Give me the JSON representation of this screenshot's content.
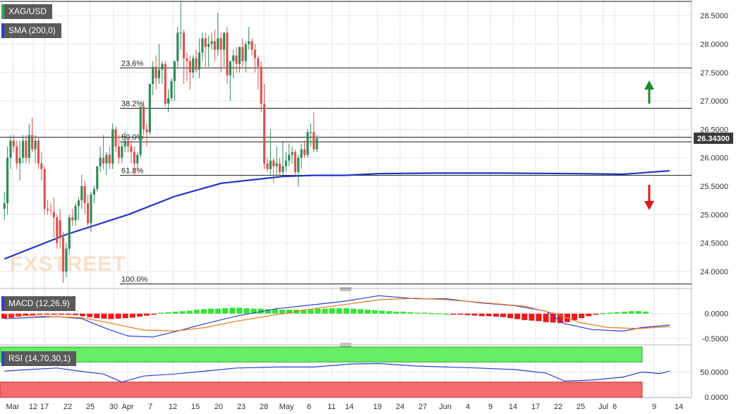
{
  "chart_data": {
    "type": "candlestick",
    "title": "XAG/USD",
    "symbol": "XAG/USD",
    "last_price": 26.343,
    "last_price_label": "26.34300",
    "watermark": "FXSTREET",
    "indicators": {
      "sma_label": "SMA (200,0)",
      "macd_label": "MACD (12,26,9)",
      "rsi_label": "RSI (14,70,30,1)"
    },
    "price_axis": {
      "ylim": [
        23.75,
        28.75
      ],
      "ticks": [
        24.0,
        24.5,
        25.0,
        25.5,
        26.0,
        26.5,
        27.0,
        27.5,
        28.0,
        28.5
      ],
      "tick_labels": [
        "24.0000",
        "24.5000",
        "25.0000",
        "25.5000",
        "26.0000",
        "26.5000",
        "27.0000",
        "27.5000",
        "28.0000",
        "28.5000"
      ]
    },
    "macd_axis": {
      "ylim": [
        -0.6,
        0.45
      ],
      "ticks": [
        0,
        -0.5
      ],
      "tick_labels": [
        "0.0000",
        "-0.5000"
      ]
    },
    "rsi_axis": {
      "ylim": [
        0,
        100
      ],
      "ticks": [
        50,
        0
      ],
      "tick_labels": [
        "50.0000",
        "0.0000"
      ],
      "overbought": 70,
      "oversold": 30
    },
    "x_axis_labels": [
      "Mar",
      "12",
      "17",
      "22",
      "25",
      "30",
      "Apr",
      "7",
      "12",
      "15",
      "20",
      "23",
      "28",
      "May",
      "6",
      "11",
      "14",
      "19",
      "24",
      "27",
      "Jun",
      "4",
      "9",
      "14",
      "17",
      "22",
      "25",
      "Jul",
      "6",
      "9",
      "14"
    ],
    "fibonacci": [
      {
        "label": "23.6%",
        "price": 27.58
      },
      {
        "label": "38.2%",
        "price": 26.87
      },
      {
        "label": "50.0%",
        "price": 26.28
      },
      {
        "label": "61.8%",
        "price": 25.69
      },
      {
        "label": "100.0%",
        "price": 23.78
      }
    ],
    "level_lines": [
      28.75,
      26.36
    ],
    "candles": [
      {
        "o": 25.1,
        "h": 25.4,
        "l": 24.9,
        "c": 25.2
      },
      {
        "o": 25.2,
        "h": 26.2,
        "l": 25.0,
        "c": 26.0
      },
      {
        "o": 26.0,
        "h": 26.4,
        "l": 25.8,
        "c": 26.3
      },
      {
        "o": 26.3,
        "h": 26.4,
        "l": 26.1,
        "c": 26.2
      },
      {
        "o": 26.2,
        "h": 26.3,
        "l": 25.8,
        "c": 25.9
      },
      {
        "o": 25.9,
        "h": 26.3,
        "l": 25.6,
        "c": 26.0
      },
      {
        "o": 26.0,
        "h": 26.4,
        "l": 25.9,
        "c": 26.3
      },
      {
        "o": 26.3,
        "h": 26.4,
        "l": 25.9,
        "c": 26.0
      },
      {
        "o": 26.0,
        "h": 26.6,
        "l": 25.9,
        "c": 26.4
      },
      {
        "o": 26.4,
        "h": 26.7,
        "l": 26.1,
        "c": 26.15
      },
      {
        "o": 26.15,
        "h": 26.4,
        "l": 25.9,
        "c": 26.3
      },
      {
        "o": 26.3,
        "h": 26.35,
        "l": 25.8,
        "c": 25.9
      },
      {
        "o": 25.9,
        "h": 26.1,
        "l": 25.6,
        "c": 25.8
      },
      {
        "o": 25.8,
        "h": 25.85,
        "l": 25.0,
        "c": 25.1
      },
      {
        "o": 25.1,
        "h": 25.25,
        "l": 25.0,
        "c": 25.08
      },
      {
        "o": 25.08,
        "h": 25.2,
        "l": 25.0,
        "c": 25.07
      },
      {
        "o": 25.05,
        "h": 25.3,
        "l": 24.6,
        "c": 24.95
      },
      {
        "o": 24.95,
        "h": 25.0,
        "l": 24.4,
        "c": 24.5
      },
      {
        "o": 24.9,
        "h": 25.1,
        "l": 24.4,
        "c": 24.6
      },
      {
        "o": 24.6,
        "h": 24.7,
        "l": 23.8,
        "c": 24.0
      },
      {
        "o": 24.0,
        "h": 24.5,
        "l": 23.9,
        "c": 24.4
      },
      {
        "o": 24.4,
        "h": 25.0,
        "l": 24.3,
        "c": 24.95
      },
      {
        "o": 24.95,
        "h": 25.1,
        "l": 24.8,
        "c": 24.9
      },
      {
        "o": 24.9,
        "h": 25.2,
        "l": 24.8,
        "c": 25.15
      },
      {
        "o": 25.15,
        "h": 25.3,
        "l": 24.9,
        "c": 25.25
      },
      {
        "o": 25.25,
        "h": 25.7,
        "l": 25.1,
        "c": 25.5
      },
      {
        "o": 25.5,
        "h": 25.6,
        "l": 25.0,
        "c": 25.2
      },
      {
        "o": 25.2,
        "h": 25.35,
        "l": 24.8,
        "c": 24.85
      },
      {
        "o": 24.85,
        "h": 25.4,
        "l": 24.7,
        "c": 25.35
      },
      {
        "o": 25.35,
        "h": 25.5,
        "l": 25.2,
        "c": 25.45
      },
      {
        "o": 25.45,
        "h": 25.85,
        "l": 25.4,
        "c": 25.85
      },
      {
        "o": 25.85,
        "h": 26.2,
        "l": 25.75,
        "c": 26.0
      },
      {
        "o": 26.0,
        "h": 26.4,
        "l": 25.8,
        "c": 25.9
      },
      {
        "o": 25.9,
        "h": 26.1,
        "l": 25.7,
        "c": 26.05
      },
      {
        "o": 26.05,
        "h": 26.2,
        "l": 25.8,
        "c": 25.9
      },
      {
        "o": 25.9,
        "h": 26.6,
        "l": 25.8,
        "c": 26.5
      },
      {
        "o": 26.5,
        "h": 26.55,
        "l": 26.1,
        "c": 26.2
      },
      {
        "o": 26.2,
        "h": 26.4,
        "l": 25.9,
        "c": 26.0
      },
      {
        "o": 26.0,
        "h": 26.3,
        "l": 25.9,
        "c": 26.2
      },
      {
        "o": 26.2,
        "h": 26.45,
        "l": 26.1,
        "c": 26.3
      },
      {
        "o": 26.3,
        "h": 26.35,
        "l": 26.1,
        "c": 26.2
      },
      {
        "o": 26.2,
        "h": 26.3,
        "l": 25.9,
        "c": 26.1
      },
      {
        "o": 26.1,
        "h": 26.2,
        "l": 25.7,
        "c": 25.9
      },
      {
        "o": 25.9,
        "h": 26.1,
        "l": 25.8,
        "c": 26.05
      },
      {
        "o": 26.05,
        "h": 26.9,
        "l": 26.0,
        "c": 26.9
      },
      {
        "o": 26.9,
        "h": 27.0,
        "l": 26.4,
        "c": 26.5
      },
      {
        "o": 26.5,
        "h": 26.6,
        "l": 26.2,
        "c": 26.45
      },
      {
        "o": 26.45,
        "h": 27.3,
        "l": 26.4,
        "c": 27.3
      },
      {
        "o": 27.3,
        "h": 27.7,
        "l": 27.1,
        "c": 27.6
      },
      {
        "o": 27.6,
        "h": 27.8,
        "l": 27.2,
        "c": 27.4
      },
      {
        "o": 27.4,
        "h": 28.0,
        "l": 27.3,
        "c": 27.55
      },
      {
        "o": 27.55,
        "h": 27.7,
        "l": 27.3,
        "c": 27.65
      },
      {
        "o": 27.65,
        "h": 27.7,
        "l": 26.9,
        "c": 26.95
      },
      {
        "o": 26.95,
        "h": 27.2,
        "l": 26.8,
        "c": 27.05
      },
      {
        "o": 27.05,
        "h": 27.4,
        "l": 27.0,
        "c": 27.35
      },
      {
        "o": 27.35,
        "h": 27.7,
        "l": 27.0,
        "c": 27.7
      },
      {
        "o": 27.7,
        "h": 28.3,
        "l": 27.6,
        "c": 28.2
      },
      {
        "o": 28.2,
        "h": 28.75,
        "l": 27.9,
        "c": 28.2
      },
      {
        "o": 28.2,
        "h": 28.25,
        "l": 27.3,
        "c": 27.75
      },
      {
        "o": 27.75,
        "h": 27.85,
        "l": 27.35,
        "c": 27.7
      },
      {
        "o": 27.7,
        "h": 27.8,
        "l": 27.2,
        "c": 27.5
      },
      {
        "o": 27.5,
        "h": 27.8,
        "l": 27.4,
        "c": 27.75
      },
      {
        "o": 27.75,
        "h": 27.9,
        "l": 27.5,
        "c": 27.55
      },
      {
        "o": 27.55,
        "h": 28.1,
        "l": 27.4,
        "c": 27.85
      },
      {
        "o": 27.85,
        "h": 28.2,
        "l": 27.7,
        "c": 28.1
      },
      {
        "o": 28.1,
        "h": 28.2,
        "l": 27.6,
        "c": 27.95
      },
      {
        "o": 27.95,
        "h": 28.15,
        "l": 27.6,
        "c": 28.0
      },
      {
        "o": 28.0,
        "h": 28.2,
        "l": 27.9,
        "c": 28.05
      },
      {
        "o": 28.05,
        "h": 28.25,
        "l": 27.7,
        "c": 27.9
      },
      {
        "o": 27.9,
        "h": 28.55,
        "l": 27.8,
        "c": 28.1
      },
      {
        "o": 28.1,
        "h": 28.2,
        "l": 27.5,
        "c": 27.9
      },
      {
        "o": 27.9,
        "h": 28.2,
        "l": 27.6,
        "c": 28.2
      },
      {
        "o": 28.2,
        "h": 28.3,
        "l": 27.3,
        "c": 27.45
      },
      {
        "o": 27.45,
        "h": 27.7,
        "l": 27.0,
        "c": 27.7
      },
      {
        "o": 27.7,
        "h": 27.9,
        "l": 27.4,
        "c": 27.8
      },
      {
        "o": 27.8,
        "h": 27.95,
        "l": 27.5,
        "c": 27.65
      },
      {
        "o": 27.65,
        "h": 27.95,
        "l": 27.5,
        "c": 27.95
      },
      {
        "o": 27.95,
        "h": 28.1,
        "l": 27.6,
        "c": 27.7
      },
      {
        "o": 27.7,
        "h": 28.05,
        "l": 27.5,
        "c": 28.0
      },
      {
        "o": 28.0,
        "h": 28.3,
        "l": 27.9,
        "c": 28.05
      },
      {
        "o": 28.05,
        "h": 28.1,
        "l": 27.8,
        "c": 27.9
      },
      {
        "o": 27.9,
        "h": 28.0,
        "l": 27.5,
        "c": 27.75
      },
      {
        "o": 27.75,
        "h": 27.8,
        "l": 27.2,
        "c": 27.6
      },
      {
        "o": 27.6,
        "h": 27.7,
        "l": 26.8,
        "c": 26.95
      },
      {
        "o": 26.95,
        "h": 27.3,
        "l": 25.8,
        "c": 25.9
      },
      {
        "o": 25.9,
        "h": 26.0,
        "l": 25.75,
        "c": 25.8
      },
      {
        "o": 25.8,
        "h": 26.5,
        "l": 25.7,
        "c": 25.95
      },
      {
        "o": 25.95,
        "h": 26.0,
        "l": 25.55,
        "c": 25.85
      },
      {
        "o": 25.85,
        "h": 26.2,
        "l": 25.7,
        "c": 25.9
      },
      {
        "o": 25.9,
        "h": 26.0,
        "l": 25.65,
        "c": 25.75
      },
      {
        "o": 25.75,
        "h": 26.3,
        "l": 25.7,
        "c": 25.85
      },
      {
        "o": 25.85,
        "h": 26.1,
        "l": 25.75,
        "c": 25.95
      },
      {
        "o": 25.95,
        "h": 26.25,
        "l": 25.85,
        "c": 26.05
      },
      {
        "o": 26.05,
        "h": 26.2,
        "l": 25.9,
        "c": 26.1
      },
      {
        "o": 26.1,
        "h": 26.15,
        "l": 25.7,
        "c": 25.75
      },
      {
        "o": 25.75,
        "h": 26.05,
        "l": 25.5,
        "c": 26.0
      },
      {
        "o": 26.0,
        "h": 26.25,
        "l": 25.8,
        "c": 26.15
      },
      {
        "o": 26.15,
        "h": 26.3,
        "l": 26.0,
        "c": 26.05
      },
      {
        "o": 26.05,
        "h": 26.5,
        "l": 26.0,
        "c": 26.45
      },
      {
        "o": 26.45,
        "h": 26.6,
        "l": 26.2,
        "c": 26.45
      },
      {
        "o": 26.45,
        "h": 26.8,
        "l": 26.1,
        "c": 26.15
      },
      {
        "o": 26.15,
        "h": 26.4,
        "l": 26.1,
        "c": 26.34
      }
    ],
    "sma_200": [
      [
        0,
        24.22
      ],
      [
        20,
        24.65
      ],
      [
        40,
        25.0
      ],
      [
        55,
        25.32
      ],
      [
        70,
        25.55
      ],
      [
        90,
        25.67
      ],
      [
        100,
        25.69
      ],
      [
        110,
        25.69
      ],
      [
        121,
        25.72
      ],
      [
        140,
        25.73
      ],
      [
        160,
        25.73
      ],
      [
        185,
        25.72
      ],
      [
        200,
        25.71
      ],
      [
        215,
        25.77
      ]
    ],
    "macd_line": [
      [
        0,
        -0.1
      ],
      [
        8,
        -0.08
      ],
      [
        17,
        -0.06
      ],
      [
        25,
        -0.1
      ],
      [
        33,
        -0.3
      ],
      [
        40,
        -0.45
      ],
      [
        48,
        -0.47
      ],
      [
        56,
        -0.35
      ],
      [
        65,
        -0.2
      ],
      [
        75,
        -0.05
      ],
      [
        88,
        0.1
      ],
      [
        100,
        0.18
      ],
      [
        110,
        0.25
      ],
      [
        121,
        0.36
      ],
      [
        133,
        0.3
      ],
      [
        143,
        0.3
      ],
      [
        153,
        0.22
      ],
      [
        165,
        0.16
      ],
      [
        175,
        0.05
      ],
      [
        181,
        -0.2
      ],
      [
        190,
        -0.32
      ],
      [
        200,
        -0.35
      ],
      [
        206,
        -0.28
      ],
      [
        215,
        -0.23
      ]
    ],
    "macd_signal": [
      [
        0,
        -0.02
      ],
      [
        10,
        -0.05
      ],
      [
        25,
        -0.08
      ],
      [
        35,
        -0.2
      ],
      [
        45,
        -0.33
      ],
      [
        55,
        -0.35
      ],
      [
        65,
        -0.28
      ],
      [
        75,
        -0.15
      ],
      [
        88,
        -0.02
      ],
      [
        100,
        0.1
      ],
      [
        112,
        0.2
      ],
      [
        121,
        0.28
      ],
      [
        133,
        0.31
      ],
      [
        143,
        0.28
      ],
      [
        155,
        0.22
      ],
      [
        168,
        0.15
      ],
      [
        178,
        0.0
      ],
      [
        186,
        -0.18
      ],
      [
        195,
        -0.28
      ],
      [
        205,
        -0.3
      ],
      [
        215,
        -0.26
      ]
    ],
    "macd_histogram": [
      -0.1,
      -0.08,
      -0.06,
      -0.04,
      -0.03,
      -0.02,
      -0.01,
      -0.01,
      -0.02,
      -0.02,
      -0.03,
      -0.05,
      -0.07,
      -0.09,
      -0.1,
      -0.11,
      -0.1,
      -0.09,
      -0.08,
      -0.06,
      -0.04,
      -0.02,
      0.02,
      0.03,
      0.04,
      0.05,
      0.06,
      0.08,
      0.09,
      0.1,
      0.1,
      0.11,
      0.12,
      0.12,
      0.11,
      0.1,
      0.1,
      0.09,
      0.09,
      0.08,
      0.08,
      0.08,
      0.08,
      0.09,
      0.1,
      0.1,
      0.11,
      0.11,
      0.11,
      0.1,
      0.09,
      0.08,
      0.07,
      0.06,
      0.05,
      0.04,
      0.04,
      0.03,
      0.02,
      0.02,
      0.01,
      0.01,
      0.0,
      -0.01,
      -0.02,
      -0.03,
      -0.04,
      -0.05,
      -0.05,
      -0.06,
      -0.07,
      -0.09,
      -0.11,
      -0.13,
      -0.14,
      -0.15,
      -0.17,
      -0.18,
      -0.19,
      -0.17,
      -0.13,
      -0.09,
      -0.05,
      -0.02,
      0.01,
      0.02,
      0.03,
      0.04,
      0.05,
      0.05,
      0.04
    ],
    "rsi": [
      [
        0,
        52
      ],
      [
        8,
        55
      ],
      [
        17,
        58
      ],
      [
        24,
        52
      ],
      [
        32,
        46
      ],
      [
        38,
        30
      ],
      [
        45,
        42
      ],
      [
        55,
        46
      ],
      [
        65,
        52
      ],
      [
        75,
        58
      ],
      [
        88,
        60
      ],
      [
        100,
        60
      ],
      [
        112,
        66
      ],
      [
        121,
        67
      ],
      [
        133,
        62
      ],
      [
        143,
        60
      ],
      [
        153,
        58
      ],
      [
        165,
        55
      ],
      [
        175,
        48
      ],
      [
        181,
        32
      ],
      [
        190,
        34
      ],
      [
        200,
        40
      ],
      [
        206,
        50
      ],
      [
        212,
        47
      ],
      [
        215,
        52
      ]
    ]
  }
}
